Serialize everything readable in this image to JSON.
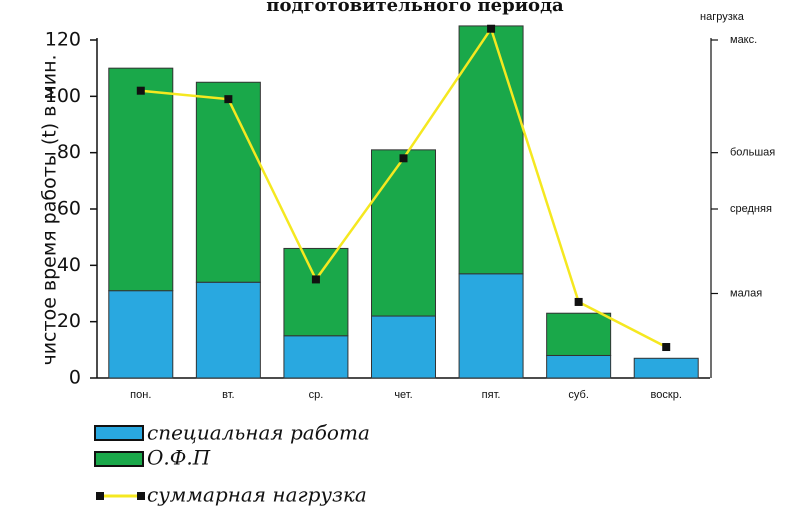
{
  "chart_data": {
    "type": "bar",
    "stacked": true,
    "title": "подготовительного периода",
    "ylabel": "чистое время работы (t) в мин.",
    "ylim": [
      0,
      120
    ],
    "yticks": [
      0,
      20,
      40,
      60,
      80,
      100,
      120
    ],
    "categories": [
      "пон.",
      "вт.",
      "ср.",
      "чет.",
      "пят.",
      "суб.",
      "воскр."
    ],
    "series": [
      {
        "name": "специальная работа",
        "color": "#29a8e0",
        "values": [
          31,
          34,
          15,
          22,
          37,
          8,
          7
        ]
      },
      {
        "name": "О.Ф.П",
        "color": "#1aa84a",
        "values": [
          79,
          71,
          31,
          59,
          88,
          15,
          0
        ]
      }
    ],
    "line": {
      "name": "суммарная нагрузка",
      "color": "#f5e820",
      "marker_color": "#111111",
      "values": [
        102,
        99,
        35,
        78,
        124,
        27,
        11
      ]
    },
    "right_axis": {
      "title": "нагрузка",
      "levels": [
        {
          "label": "малая",
          "value": 30
        },
        {
          "label": "средняя",
          "value": 60
        },
        {
          "label": "большая",
          "value": 80
        },
        {
          "label": "макс.",
          "value": 120
        }
      ]
    },
    "legend_position": "bottom-left"
  }
}
